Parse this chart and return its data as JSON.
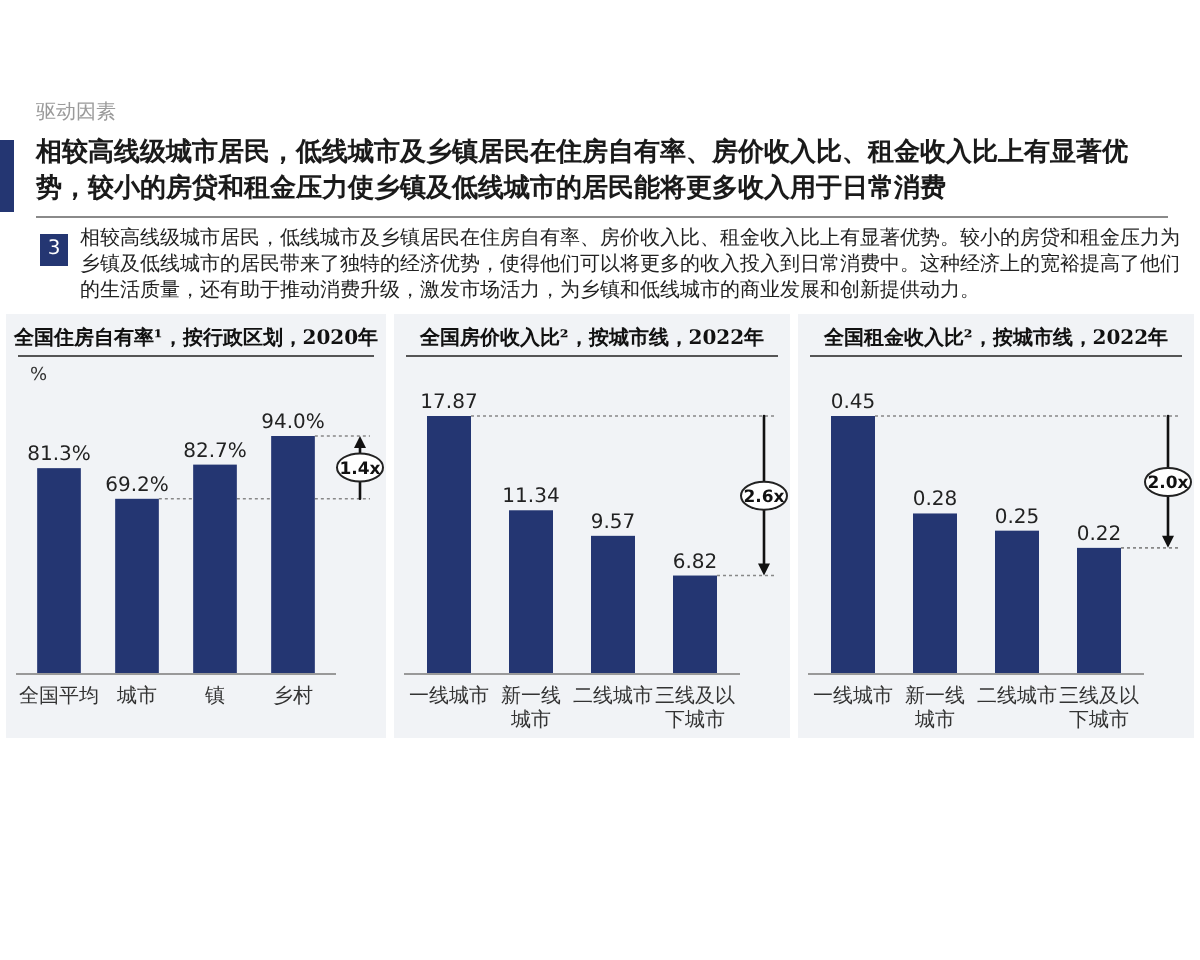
{
  "chart_data": [
    {
      "type": "other",
      "title": "相较高线级城市居民，低线城市及乡镇居民在住房自有率、房价收入比、租金收入比上有显著优势，较小的房贷和租金压力使乡镇及低线城市的居民能将更多收入用于日常消费",
      "subtitle": "相较高线级城市居民，低线城市及乡镇居民在住房自有率、房价收入比、租金收入比上有显著优势。较小的房贷和租金压力为乡镇及低线城市的居民带来了独特的经济优势，使得他们可以将更多的收入投入到日常消费中。这种经济上的宽裕提高了他们的生活质量，还有助于推动消费升级，激发市场活力，为乡镇和低线城市的商业发展和创新提供动力。",
      "annotations": [
        "驱动因素",
        "3"
      ]
    },
    {
      "type": "bar",
      "title": "全国住房自有率¹，按行政区划，2020年",
      "ylabel": "%",
      "categories": [
        "全国平均",
        "城市",
        "镇",
        "乡村"
      ],
      "values": [
        81.3,
        69.2,
        82.7,
        94.0
      ],
      "value_labels": [
        "81.3%",
        "69.2%",
        "82.7%",
        "94.0%"
      ],
      "color": "#243672",
      "annotations": [
        "1.4x"
      ]
    },
    {
      "type": "bar",
      "title": "全国房价收入比²，按城市线，2022年",
      "categories": [
        "一线城市",
        "新一线城市",
        "二线城市",
        "三线及以下城市"
      ],
      "values": [
        17.87,
        11.34,
        9.57,
        6.82
      ],
      "data_labels": true,
      "color": "#243672",
      "annotations": [
        "2.6x"
      ]
    },
    {
      "type": "bar",
      "title": "全国租金收入比²，按城市线，2022年",
      "categories": [
        "一线城市",
        "新一线城市",
        "二线城市",
        "三线及以下城市"
      ],
      "values": [
        0.45,
        0.28,
        0.25,
        0.22
      ],
      "data_labels": true,
      "color": "#243672",
      "annotations": [
        "2.0x"
      ]
    }
  ]
}
